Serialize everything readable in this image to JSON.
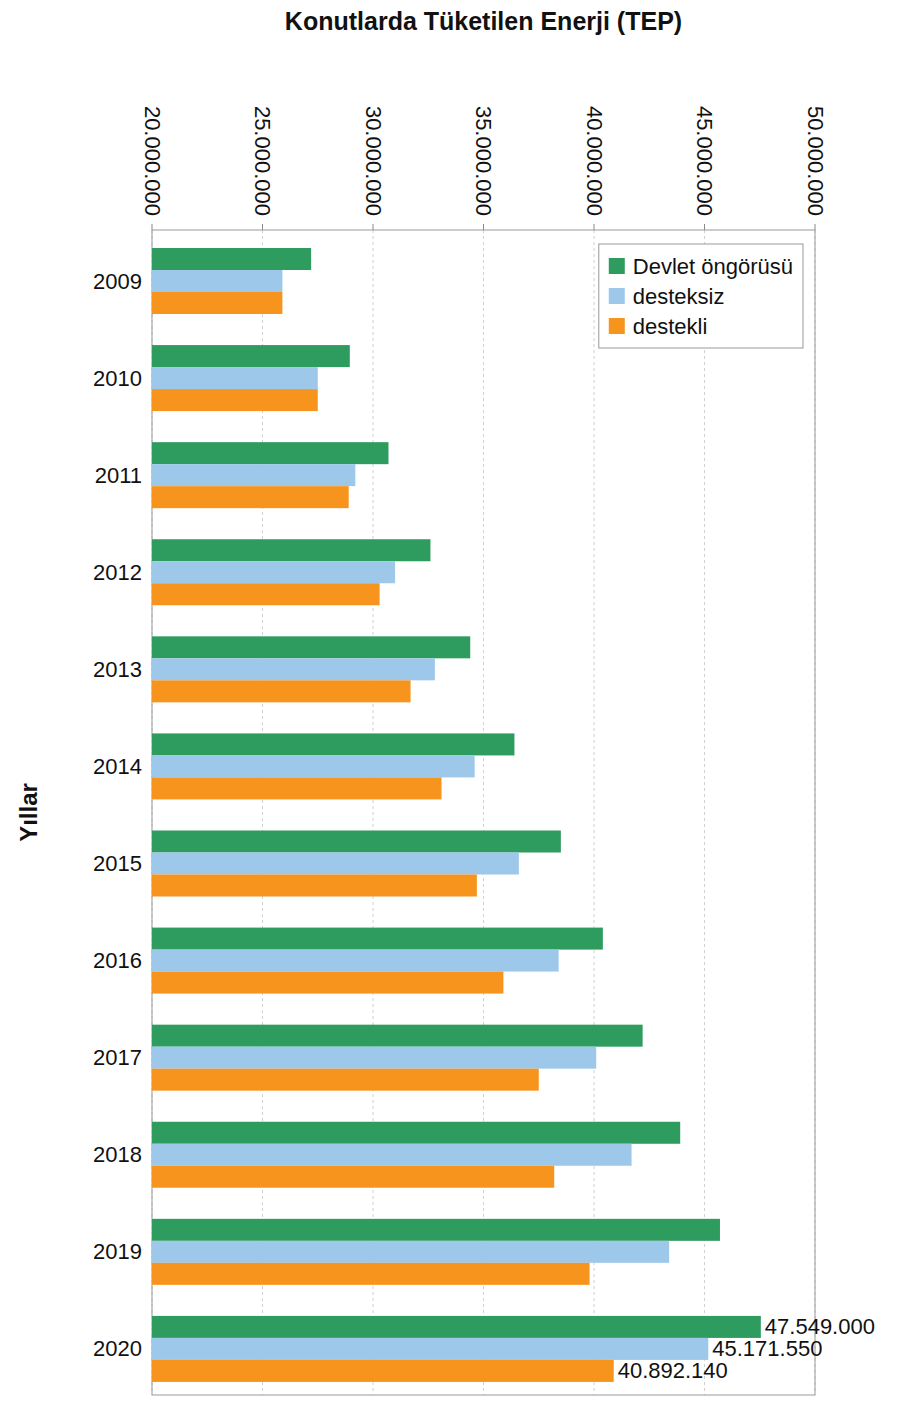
{
  "chart_data": {
    "type": "bar",
    "orientation": "horizontal",
    "ylabel": "Konutlarda Tüketilen Enerji (TEP)",
    "xlabel": "Yıllar",
    "categories": [
      "2009",
      "2010",
      "2011",
      "2012",
      "2013",
      "2014",
      "2015",
      "2016",
      "2017",
      "2018",
      "2019",
      "2020"
    ],
    "series": [
      {
        "name": "Devlet öngörüsü",
        "color": "#2e9b5f",
        "values": [
          27200000,
          28950000,
          30700000,
          32600000,
          34400000,
          36400000,
          38500000,
          40400000,
          42200000,
          43900000,
          45700000,
          47549000
        ],
        "value_labels": [
          null,
          null,
          null,
          null,
          null,
          null,
          null,
          null,
          null,
          null,
          null,
          "47.549.000"
        ]
      },
      {
        "name": "desteksiz",
        "color": "#9dc8ea",
        "values": [
          25900000,
          27500000,
          29200000,
          31000000,
          32800000,
          34600000,
          36600000,
          38400000,
          40100000,
          41700000,
          43400000,
          45171550
        ],
        "value_labels": [
          null,
          null,
          null,
          null,
          null,
          null,
          null,
          null,
          null,
          null,
          null,
          "45.171.550"
        ]
      },
      {
        "name": "destekli",
        "color": "#f7941d",
        "values": [
          25900000,
          27500000,
          28900000,
          30300000,
          31700000,
          33100000,
          34700000,
          35900000,
          37500000,
          38200000,
          39800000,
          40892140
        ],
        "value_labels": [
          null,
          null,
          null,
          null,
          null,
          null,
          null,
          null,
          null,
          null,
          null,
          "40.892.140"
        ]
      }
    ],
    "ylim": [
      20000000,
      50000000
    ],
    "yticks": [
      {
        "value": 20000000,
        "label": "20.000.000"
      },
      {
        "value": 25000000,
        "label": "25.000.000"
      },
      {
        "value": 30000000,
        "label": "30.000.000"
      },
      {
        "value": 35000000,
        "label": "35.000.000"
      },
      {
        "value": 40000000,
        "label": "40.000.000"
      },
      {
        "value": 45000000,
        "label": "45.000.000"
      },
      {
        "value": 50000000,
        "label": "50.000.000"
      }
    ],
    "grid": true,
    "legend": "top-right",
    "data_labels": true
  }
}
